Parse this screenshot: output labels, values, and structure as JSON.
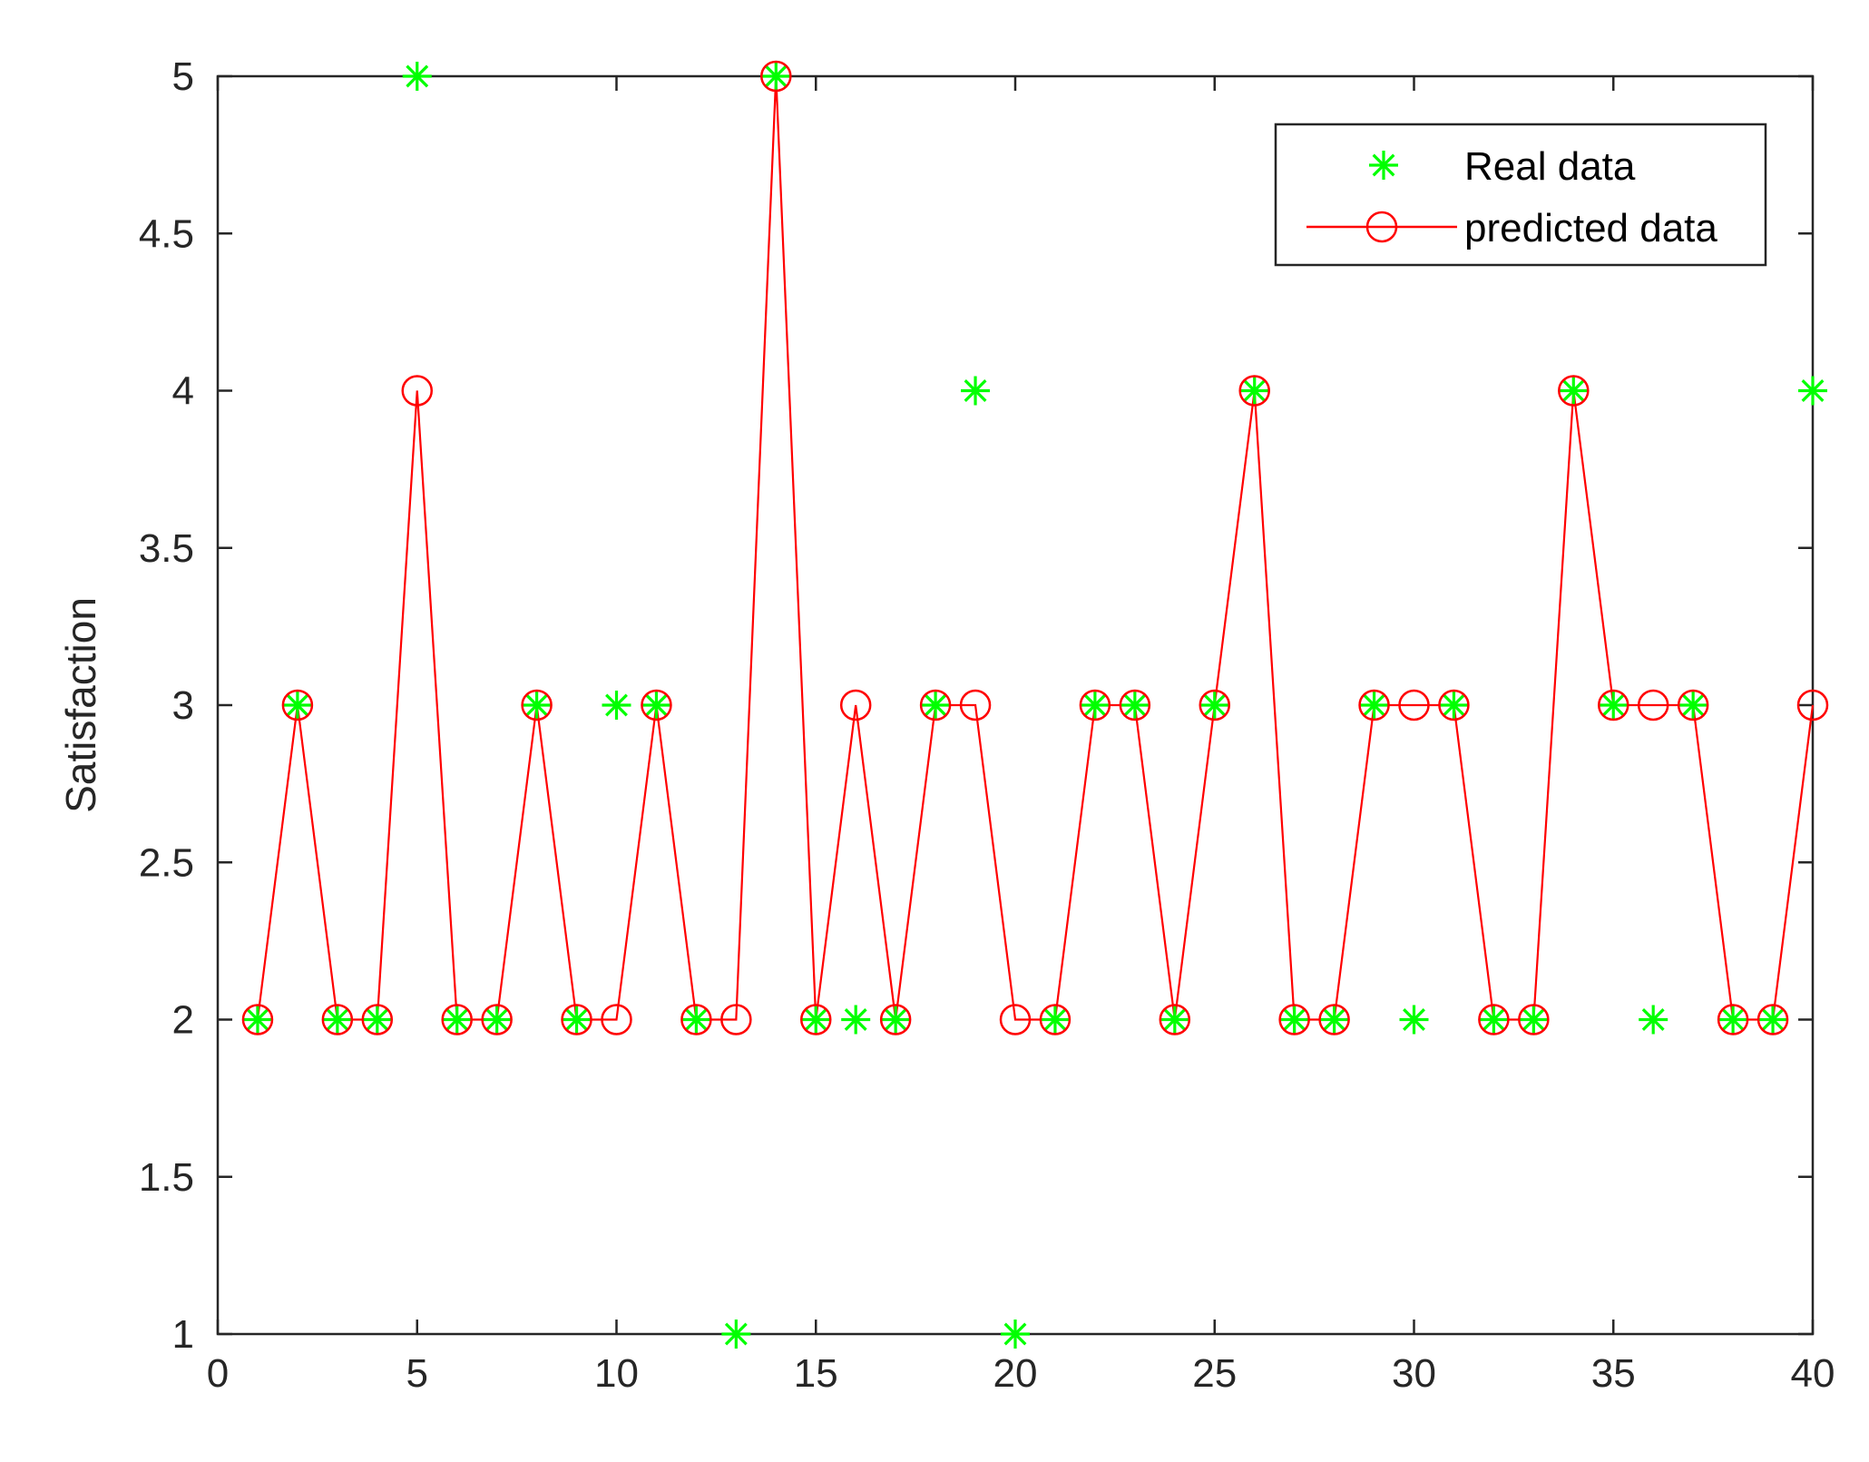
{
  "chart_data": {
    "type": "line",
    "title": "",
    "xlabel": "",
    "ylabel": "Satisfaction",
    "xlim": [
      0,
      40
    ],
    "ylim": [
      1,
      5
    ],
    "xticks": [
      0,
      5,
      10,
      15,
      20,
      25,
      30,
      35,
      40
    ],
    "yticks": [
      1,
      1.5,
      2,
      2.5,
      3,
      3.5,
      4,
      4.5,
      5
    ],
    "grid": false,
    "legend_position": "top-right",
    "x": [
      1,
      2,
      3,
      4,
      5,
      6,
      7,
      8,
      9,
      10,
      11,
      12,
      13,
      14,
      15,
      16,
      17,
      18,
      19,
      20,
      21,
      22,
      23,
      24,
      25,
      26,
      27,
      28,
      29,
      30,
      31,
      32,
      33,
      34,
      35,
      36,
      37,
      38,
      39,
      40
    ],
    "series": [
      {
        "name": "Real data",
        "marker": "asterisk",
        "line": "none",
        "color": "#00ff00",
        "values": [
          2,
          3,
          2,
          2,
          5,
          2,
          2,
          3,
          2,
          3,
          3,
          2,
          1,
          5,
          2,
          2,
          2,
          3,
          4,
          1,
          2,
          3,
          3,
          2,
          3,
          4,
          2,
          2,
          3,
          2,
          3,
          2,
          2,
          4,
          3,
          2,
          3,
          2,
          2,
          4
        ]
      },
      {
        "name": "predicted data",
        "marker": "circle",
        "line": "solid",
        "color": "#ff0000",
        "values": [
          2,
          3,
          2,
          2,
          4,
          2,
          2,
          3,
          2,
          2,
          3,
          2,
          2,
          5,
          2,
          3,
          2,
          3,
          3,
          2,
          2,
          3,
          3,
          2,
          3,
          4,
          2,
          2,
          3,
          3,
          3,
          2,
          2,
          4,
          3,
          3,
          3,
          2,
          2,
          3
        ]
      }
    ]
  }
}
